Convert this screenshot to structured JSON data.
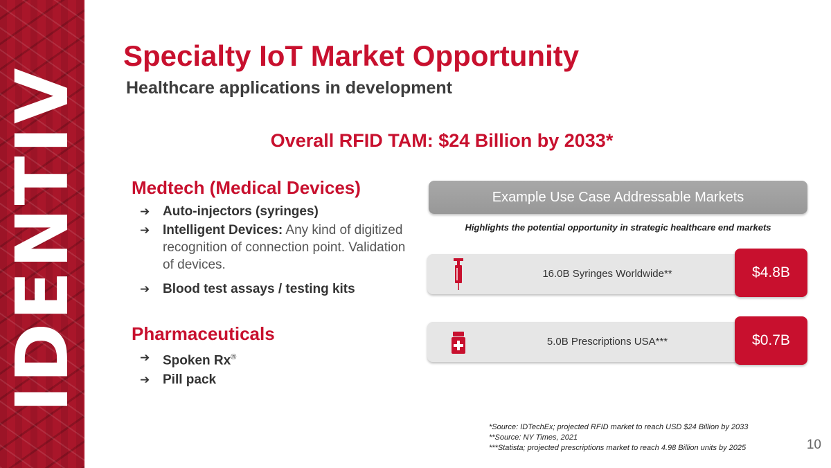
{
  "brand": {
    "logo_text": "IDENTIV"
  },
  "header": {
    "title": "Specialty IoT Market Opportunity",
    "subtitle": "Healthcare applications in development"
  },
  "tam_statement": "Overall RFID TAM: $24 Billion by 2033*",
  "medtech": {
    "heading": "Medtech (Medical Devices)",
    "items": [
      {
        "bold": "Auto-injectors (syringes)",
        "text": ""
      },
      {
        "bold": "Intelligent Devices:",
        "text": " Any kind of digitized recognition of connection point. Validation of devices."
      },
      {
        "bold": "Blood test assays / testing kits",
        "text": ""
      }
    ]
  },
  "pharma": {
    "heading": "Pharmaceuticals",
    "items": [
      {
        "bold": "Spoken Rx",
        "sup": "®"
      },
      {
        "bold": "Pill pack"
      }
    ]
  },
  "markets": {
    "header": "Example Use Case Addressable Markets",
    "note": "Highlights the potential opportunity in strategic healthcare end markets",
    "rows": [
      {
        "icon": "syringe-icon",
        "label": "16.0B Syringes Worldwide**",
        "value": "$4.8B"
      },
      {
        "icon": "medicine-bottle-icon",
        "label": "5.0B Prescriptions USA***",
        "value": "$0.7B"
      }
    ]
  },
  "sources": [
    "*Source: IDTechEx; projected RFID market to reach USD $24 Billion by 2033",
    "**Source: NY Times, 2021",
    "***Statista; projected prescriptions market to reach 4.98 Billion units by 2025"
  ],
  "page_number": "10",
  "colors": {
    "accent": "#c8102e",
    "brand_bar": "#a9162a",
    "pill_gray": "#a0a0a0",
    "band_gray": "#e6e6e6"
  }
}
